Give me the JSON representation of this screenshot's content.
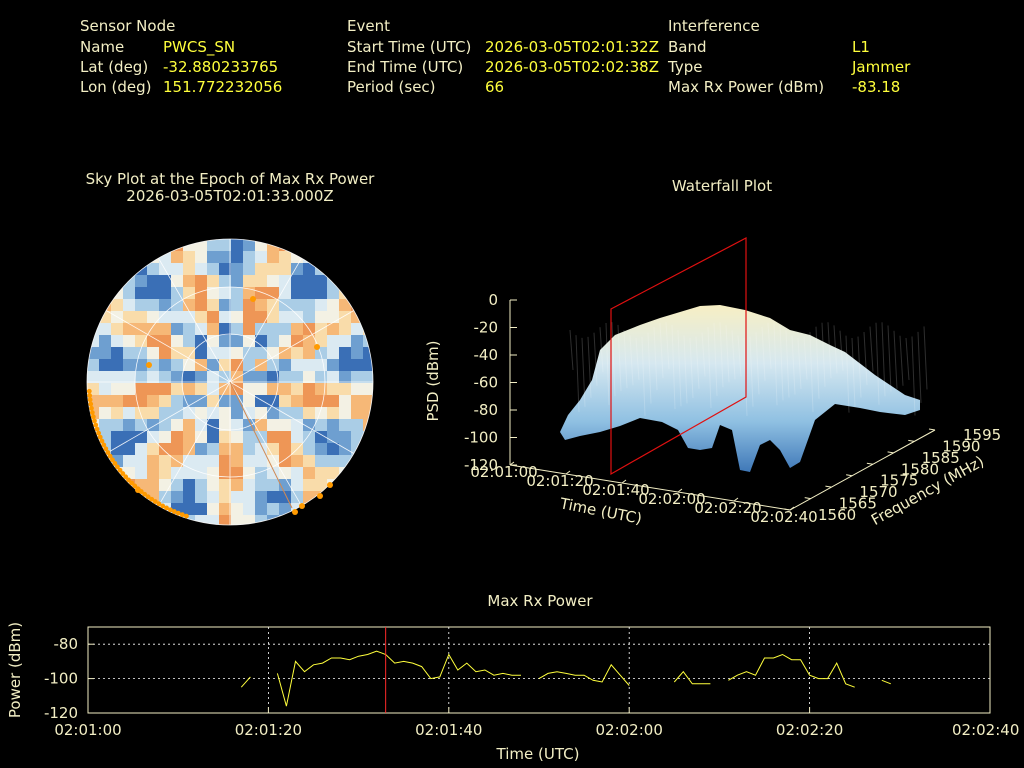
{
  "header": {
    "sensor": {
      "title": "Sensor Node",
      "name_label": "Name",
      "name_value": "PWCS_SN",
      "lat_label": "Lat (deg)",
      "lat_value": "-32.880233765",
      "lon_label": "Lon (deg)",
      "lon_value": "151.772232056"
    },
    "event": {
      "title": "Event",
      "start_label": "Start Time (UTC)",
      "start_value": "2026-03-05T02:01:32Z",
      "end_label": "End Time (UTC)",
      "end_value": "2026-03-05T02:02:38Z",
      "period_label": "Period (sec)",
      "period_value": "66"
    },
    "interference": {
      "title": "Interference",
      "band_label": "Band",
      "band_value": "L1",
      "type_label": "Type",
      "type_value": "Jammer",
      "power_label": "Max Rx Power (dBm)",
      "power_value": "-83.18"
    }
  },
  "colors": {
    "label": "#f2eec4",
    "value": "#ffff3c",
    "trace": "#ffff3c",
    "marker": "#ff2a2a",
    "satellite": "#ff9a00"
  },
  "skyplot": {
    "title": "Sky Plot at the Epoch of Max Rx Power",
    "epoch": "2026-03-05T02:01:33.000Z"
  },
  "waterfall": {
    "title": "Waterfall Plot",
    "z_label": "PSD (dBm)",
    "x_label": "Time (UTC)",
    "y_label": "Frequency (MHz)",
    "z_ticks": [
      "0",
      "-20",
      "-40",
      "-60",
      "-80",
      "-100",
      "-120"
    ],
    "x_ticks": [
      "02:01:00",
      "02:01:20",
      "02:01:40",
      "02:02:00",
      "02:02:20",
      "02:02:40"
    ],
    "y_ticks": [
      "1560",
      "1565",
      "1570",
      "1575",
      "1580",
      "1585",
      "1590",
      "1595"
    ]
  },
  "chart_data": {
    "type": "line",
    "title": "Max Rx Power",
    "xlabel": "Time (UTC)",
    "ylabel": "Power (dBm)",
    "xlim": [
      "02:01:00",
      "02:02:40"
    ],
    "ylim": [
      -120,
      -70
    ],
    "x_ticks": [
      "02:01:00",
      "02:01:20",
      "02:01:40",
      "02:02:00",
      "02:02:20",
      "02:02:40"
    ],
    "y_ticks": [
      "-80",
      "-100",
      "-120"
    ],
    "grid": true,
    "marker_time": "02:01:33",
    "series": [
      {
        "x": [
          17,
          18,
          21,
          22,
          23,
          24,
          25,
          26,
          27,
          28,
          29,
          30,
          31,
          32,
          33,
          34,
          35,
          36,
          37,
          38,
          39,
          40,
          41,
          42,
          43,
          44,
          45,
          46,
          47,
          48,
          50,
          51,
          52,
          53,
          54,
          55,
          56,
          57,
          58,
          59,
          60,
          65,
          66,
          67,
          68,
          69,
          71,
          72,
          73,
          74,
          75,
          76,
          77,
          78,
          79,
          80,
          81,
          82,
          83,
          84,
          85,
          88,
          89
        ],
        "values": [
          -105,
          -99,
          -97,
          -116,
          -90,
          -96,
          -92,
          -91,
          -88,
          -88,
          -89,
          -87,
          -86,
          -84,
          -86,
          -91,
          -90,
          -91,
          -93,
          -100,
          -99,
          -86,
          -95,
          -91,
          -96,
          -95,
          -98,
          -97,
          -98,
          -98,
          -100,
          -97,
          -96,
          -97,
          -98,
          -98,
          -101,
          -102,
          -92,
          -98,
          -104,
          -102,
          -96,
          -103,
          -103,
          -103,
          -101,
          -98,
          -96,
          -98,
          -88,
          -88,
          -86,
          -89,
          -89,
          -98,
          -100,
          -100,
          -91,
          -103,
          -105,
          -101,
          -103
        ]
      }
    ]
  }
}
